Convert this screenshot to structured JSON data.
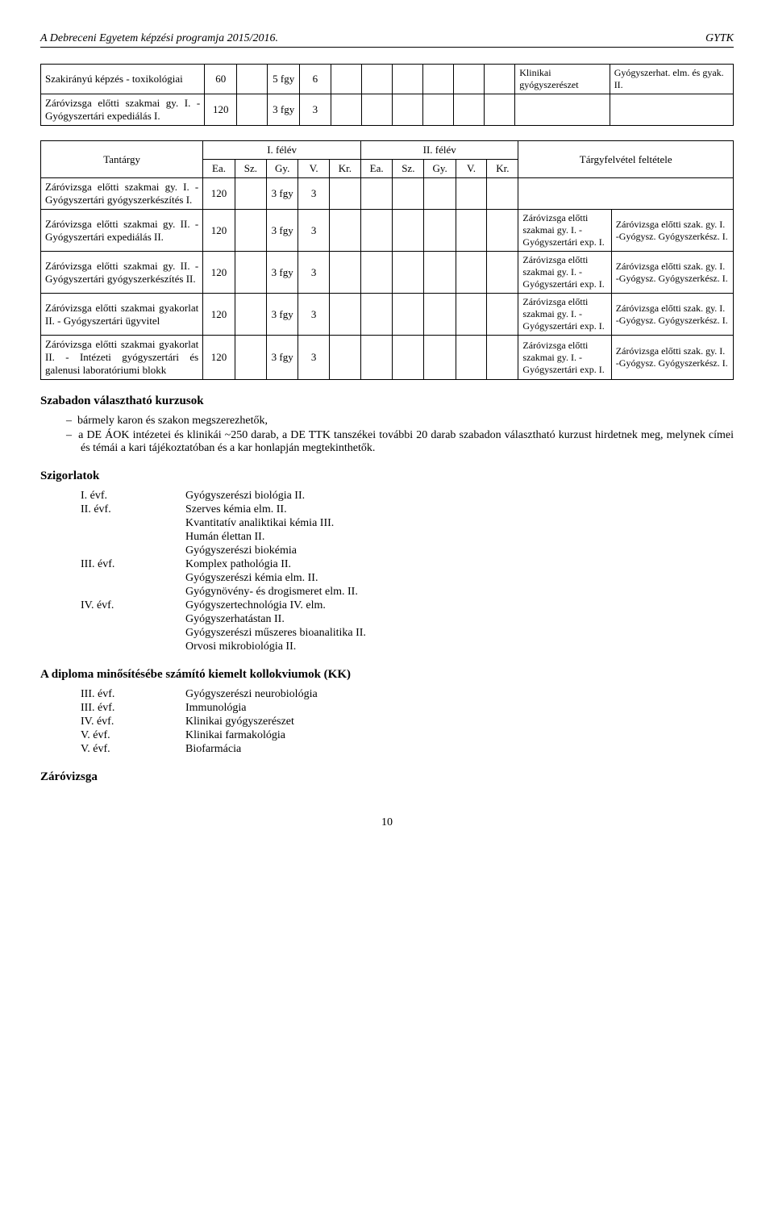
{
  "header": {
    "left": "A Debreceni Egyetem képzési programja 2015/2016.",
    "right": "GYTK"
  },
  "table1": {
    "rows": [
      {
        "desc": "Szakirányú képzés - toxikológiai",
        "c1": "60",
        "c2": "5 fgy",
        "c3": "6",
        "req1": "Klinikai gyógyszerészet",
        "req2": "Gyógyszerhat. elm. és gyak. II."
      },
      {
        "desc": "Záróvizsga előtti szakmai gy. I. - Gyógyszertári expediálás I.",
        "c1": "120",
        "c2": "3 fgy",
        "c3": "3",
        "req1": "",
        "req2": ""
      }
    ]
  },
  "table2": {
    "head": {
      "tantargy": "Tantárgy",
      "felev1": "I. félév",
      "felev2": "II. félév",
      "jobb": "Tárgyfelvétel feltétele",
      "cols": [
        "Ea.",
        "Sz.",
        "Gy.",
        "V.",
        "Kr.",
        "Ea.",
        "Sz.",
        "Gy.",
        "V.",
        "Kr."
      ]
    },
    "rows": [
      {
        "desc": "Záróvizsga előtti szakmai gy. I. - Gyógyszertári gyógyszerkészítés I.",
        "c1": "120",
        "c2": "3 fgy",
        "c3": "3",
        "r1": "",
        "r2": ""
      },
      {
        "desc": "Záróvizsga előtti szakmai gy. II. - Gyógyszertári expediálás II.",
        "c1": "120",
        "c2": "3 fgy",
        "c3": "3",
        "r1": "Záróvizsga előtti szakmai gy. I. - Gyógyszertári exp. I.",
        "r2": "Záróvizsga előtti szak. gy. I. -Gyógysz. Gyógyszerkész. I."
      },
      {
        "desc": "Záróvizsga előtti szakmai gy. II. - Gyógyszertári gyógyszerkészítés II.",
        "c1": "120",
        "c2": "3 fgy",
        "c3": "3",
        "r1": "Záróvizsga előtti szakmai gy. I. - Gyógyszertári exp. I.",
        "r2": "Záróvizsga előtti szak. gy. I. -Gyógysz. Gyógyszerkész. I."
      },
      {
        "desc": "Záróvizsga előtti szakmai gyakorlat II. - Gyógyszertári ügyvitel",
        "c1": "120",
        "c2": "3 fgy",
        "c3": "3",
        "r1": "Záróvizsga előtti szakmai gy. I. - Gyógyszertári exp. I.",
        "r2": "Záróvizsga előtti szak. gy. I. -Gyógysz. Gyógyszerkész. I."
      },
      {
        "desc": "Záróvizsga előtti szakmai gyakorlat II. - Intézeti gyógyszertári és galenusi laboratóriumi blokk",
        "c1": "120",
        "c2": "3 fgy",
        "c3": "3",
        "r1": "Záróvizsga előtti szakmai gy. I. - Gyógyszertári exp. I.",
        "r2": "Záróvizsga előtti szak. gy. I. -Gyógysz. Gyógyszerkész. I."
      }
    ]
  },
  "sections": {
    "szabadon_title": "Szabadon választható kurzusok",
    "szabadon_items": [
      "bármely karon és szakon megszerezhetők,",
      "a DE ÁOK intézetei és klinikái ~250 darab, a DE TTK tanszékei további 20 darab szabadon választható kurzust hirdetnek meg, melynek címei és témái a kari tájékoztatóban és a kar honlapján megtekinthetők."
    ],
    "szigorlatok_title": "Szigorlatok",
    "szigorlatok": [
      {
        "ev": "I. évf.",
        "items": [
          "Gyógyszerészi biológia II."
        ]
      },
      {
        "ev": "II. évf.",
        "items": [
          "Szerves kémia  elm. II.",
          "Kvantitatív analiktikai kémia III.",
          "Humán élettan II.",
          "Gyógyszerészi biokémia"
        ]
      },
      {
        "ev": "III. évf.",
        "items": [
          "Komplex pathológia II.",
          "Gyógyszerészi kémia  elm. II.",
          "Gyógynövény- és drogismeret elm. II."
        ]
      },
      {
        "ev": "IV. évf.",
        "items": [
          "Gyógyszertechnológia IV. elm.",
          "Gyógyszerhatástan II.",
          "Gyógyszerészi műszeres bioanalitika II.",
          "Orvosi mikrobiológia II."
        ]
      }
    ],
    "diploma_title": "A diploma minősítésébe számító kiemelt kollokviumok (KK)",
    "diploma": [
      {
        "ev": "III. évf.",
        "txt": "Gyógyszerészi neurobiológia"
      },
      {
        "ev": "III. évf.",
        "txt": "Immunológia"
      },
      {
        "ev": "IV. évf.",
        "txt": "Klinikai gyógyszerészet"
      },
      {
        "ev": "V. évf.",
        "txt": "Klinikai farmakológia"
      },
      {
        "ev": "V. évf.",
        "txt": "Biofarmácia"
      }
    ],
    "zarovizsga_title": "Záróvizsga"
  },
  "pagenum": "10"
}
